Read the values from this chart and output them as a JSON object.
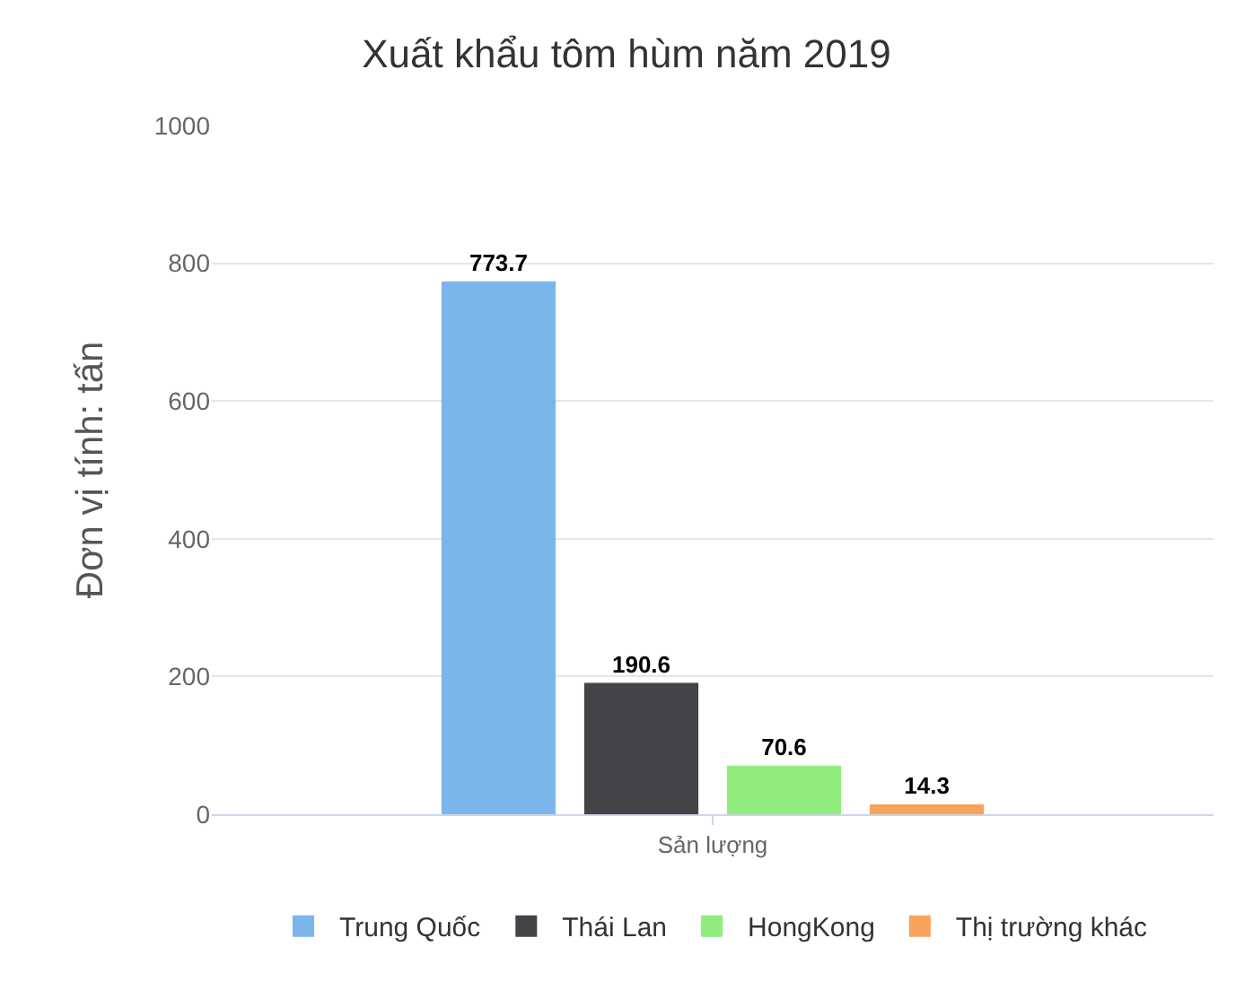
{
  "chart_data": {
    "type": "bar",
    "title": "Xuất khẩu tôm hùm năm 2019",
    "ylabel": "Đơn vị tính: tấn",
    "categories": [
      "Sản lượng"
    ],
    "series": [
      {
        "name": "Trung Quốc",
        "color": "#7cb5ec",
        "values": [
          773.7
        ]
      },
      {
        "name": "Thái Lan",
        "color": "#434348",
        "values": [
          190.6
        ]
      },
      {
        "name": "HongKong",
        "color": "#90ed7d",
        "values": [
          70.6
        ]
      },
      {
        "name": "Thị trường khác",
        "color": "#f7a35c",
        "values": [
          14.3
        ]
      }
    ],
    "ylim": [
      0,
      1000
    ],
    "yticks": [
      0,
      200,
      400,
      600,
      800,
      1000
    ],
    "grid": "y",
    "legend": "bottom",
    "data_labels": true
  }
}
